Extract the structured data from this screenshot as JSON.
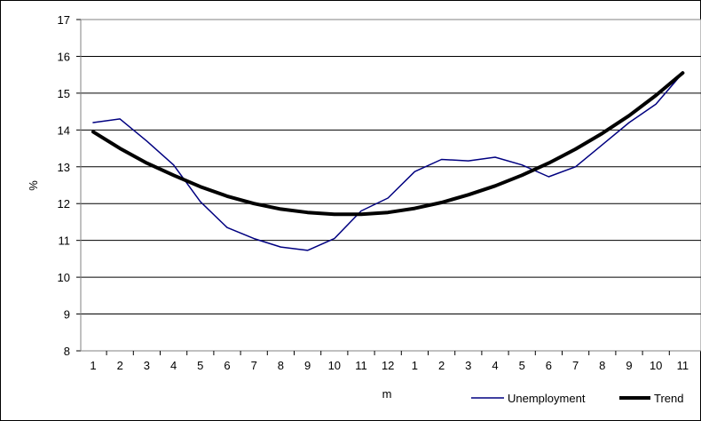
{
  "chart_data": {
    "type": "line",
    "categories": [
      "1",
      "2",
      "3",
      "4",
      "5",
      "6",
      "7",
      "8",
      "9",
      "10",
      "11",
      "12",
      "1",
      "2",
      "3",
      "4",
      "5",
      "6",
      "7",
      "8",
      "9",
      "10",
      "11"
    ],
    "xlabel": "m",
    "ylabel": "%",
    "ylim": [
      8,
      17
    ],
    "yticks": [
      8,
      9,
      10,
      11,
      12,
      13,
      14,
      15,
      16,
      17
    ],
    "grid": "horizontal",
    "legend": "bottom-right",
    "series": [
      {
        "name": "Unemployment",
        "color": "#000080",
        "values": [
          14.2,
          14.3,
          13.7,
          13.05,
          12.05,
          11.35,
          11.05,
          10.82,
          10.73,
          11.05,
          11.8,
          12.15,
          12.87,
          13.2,
          13.16,
          13.26,
          13.05,
          12.73,
          13.0,
          13.6,
          14.2,
          14.7,
          15.55
        ]
      },
      {
        "name": "Trend",
        "color": "#000000",
        "values": [
          13.95,
          13.5,
          13.1,
          12.77,
          12.46,
          12.2,
          12.0,
          11.85,
          11.76,
          11.71,
          11.71,
          11.76,
          11.87,
          12.03,
          12.24,
          12.48,
          12.77,
          13.1,
          13.48,
          13.91,
          14.39,
          14.94,
          15.55
        ]
      }
    ]
  }
}
